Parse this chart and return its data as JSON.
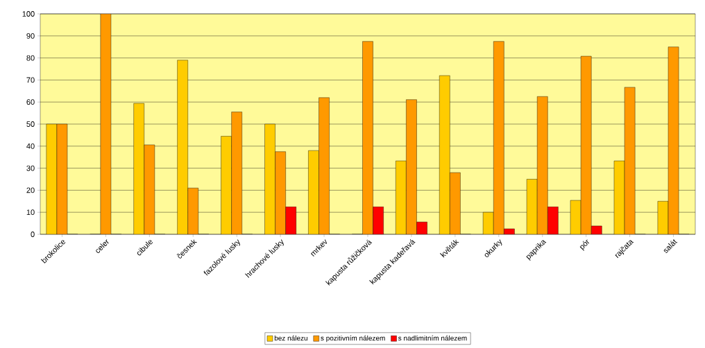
{
  "chart_data": {
    "type": "bar",
    "categories": [
      "brokolice",
      "celer",
      "cibule",
      "česnek",
      "fazolové lusky",
      "hrachové lusky",
      "mrkev",
      "kapusta růžičková",
      "kapusta kadeřavá",
      "květák",
      "okurky",
      "paprika",
      "pór",
      "rajčata",
      "salát"
    ],
    "series": [
      {
        "name": "bez nálezu",
        "color": "#ffcc00",
        "values": [
          50,
          0,
          59.4,
          79,
          44.5,
          50,
          38,
          0,
          33.3,
          72,
          10,
          25,
          15.4,
          33.3,
          15
        ]
      },
      {
        "name": "s pozitivním  nálezem",
        "color": "#ff9900",
        "values": [
          50,
          100,
          40.6,
          21,
          55.5,
          37.5,
          62,
          87.5,
          61.1,
          28,
          87.5,
          62.5,
          80.8,
          66.7,
          85
        ]
      },
      {
        "name": "s nadlimitním  nálezem",
        "color": "#ff0000",
        "values": [
          0,
          0,
          0,
          0,
          0,
          12.5,
          0,
          12.5,
          5.6,
          0,
          2.5,
          12.5,
          3.8,
          0,
          0
        ]
      }
    ],
    "ylim": [
      0,
      100
    ],
    "yticks": [
      0,
      10,
      20,
      30,
      40,
      50,
      60,
      70,
      80,
      90,
      100
    ],
    "grid": "y",
    "legend": "bottom"
  }
}
